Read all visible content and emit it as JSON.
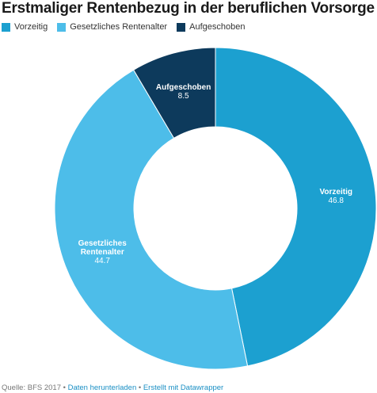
{
  "chart_data": {
    "type": "pie",
    "variant": "donut",
    "title": "Erstmaliger Rentenbezug in der beruflichen Vorsorge",
    "categories": [
      "Vorzeitig",
      "Gesetzliches Rentenalter",
      "Aufgeschoben"
    ],
    "values": [
      46.8,
      44.7,
      8.5
    ],
    "slice_labels": [
      {
        "lines": [
          "Vorzeitig"
        ],
        "value": "46.8"
      },
      {
        "lines": [
          "Gesetzliches",
          "Rentenalter"
        ],
        "value": "44.7"
      },
      {
        "lines": [
          "Aufgeschoben"
        ],
        "value": "8.5"
      }
    ],
    "colors": [
      "#1ca0d0",
      "#4dbde9",
      "#0d3a5c"
    ],
    "legend_position": "top-left",
    "start": "12 o'clock, clockwise"
  },
  "footer": {
    "source": "Quelle: BFS 2017",
    "separator": "•",
    "download_link": "Daten herunterladen",
    "credit_link": "Erstellt mit Datawrapper"
  }
}
